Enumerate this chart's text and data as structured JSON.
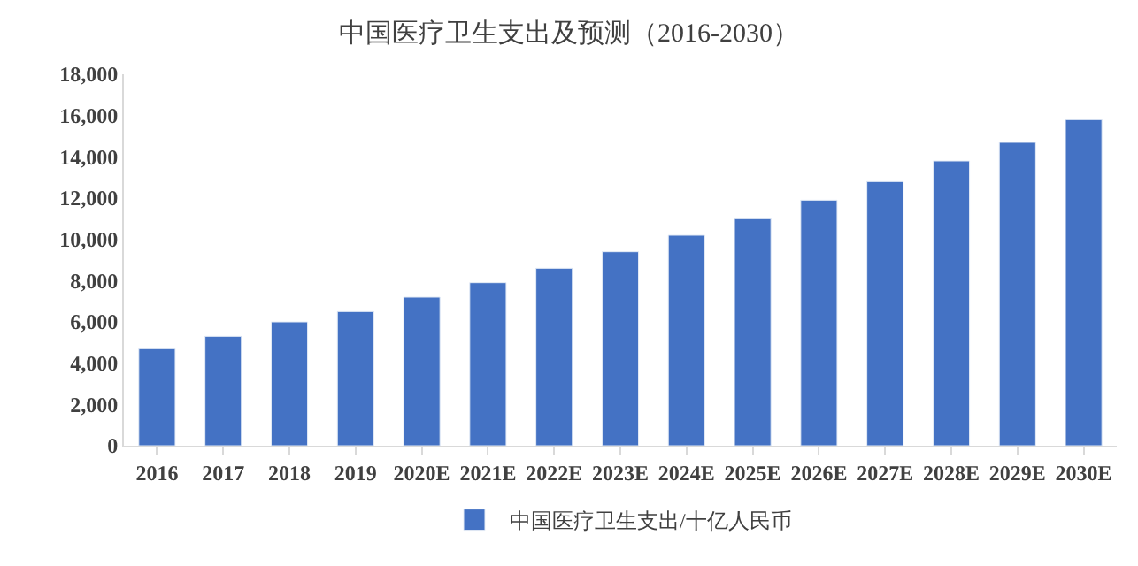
{
  "chart_data": {
    "type": "bar",
    "title": "中国医疗卫生支出及预测（2016-2030）",
    "categories": [
      "2016",
      "2017",
      "2018",
      "2019",
      "2020E",
      "2021E",
      "2022E",
      "2023E",
      "2024E",
      "2025E",
      "2026E",
      "2027E",
      "2028E",
      "2029E",
      "2030E"
    ],
    "series": [
      {
        "name": "中国医疗卫生支出/十亿人民币",
        "color": "#4472c4",
        "values": [
          4700,
          5300,
          6000,
          6500,
          7200,
          7900,
          8600,
          9400,
          10200,
          11000,
          11900,
          12800,
          13800,
          14700,
          15800
        ]
      }
    ],
    "ylim": [
      0,
      18000
    ],
    "yticks": [
      {
        "value": 0,
        "label": "0"
      },
      {
        "value": 2000,
        "label": "2,000"
      },
      {
        "value": 4000,
        "label": "4,000"
      },
      {
        "value": 6000,
        "label": "6,000"
      },
      {
        "value": 8000,
        "label": "8,000"
      },
      {
        "value": 10000,
        "label": "10,000"
      },
      {
        "value": 12000,
        "label": "12,000"
      },
      {
        "value": 14000,
        "label": "14,000"
      },
      {
        "value": 16000,
        "label": "16,000"
      },
      {
        "value": 18000,
        "label": "18,000"
      }
    ],
    "legend": "bottom"
  }
}
